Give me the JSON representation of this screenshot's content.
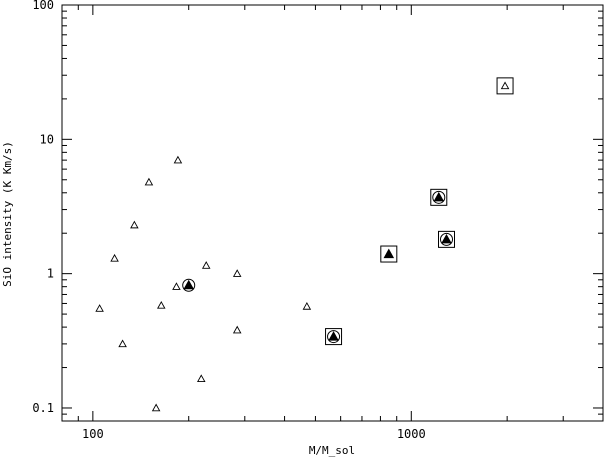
{
  "chart_data": {
    "type": "scatter",
    "xlabel": "M/M_sol",
    "ylabel": "SiO intensity (K Km/s)",
    "xscale": "log",
    "yscale": "log",
    "xlim": [
      80,
      4000
    ],
    "ylim": [
      0.08,
      100
    ],
    "x_ticks": [
      {
        "value": 100,
        "label": "100"
      },
      {
        "value": 1000,
        "label": "1000"
      }
    ],
    "y_ticks": [
      {
        "value": 0.1,
        "label": "0.1"
      },
      {
        "value": 1,
        "label": "1"
      },
      {
        "value": 10,
        "label": "10"
      },
      {
        "value": 100,
        "label": "100"
      }
    ],
    "grid": false,
    "points": [
      {
        "x": 105,
        "y": 0.55,
        "marker": "open-triangle",
        "frame": "none"
      },
      {
        "x": 117,
        "y": 1.3,
        "marker": "open-triangle",
        "frame": "none"
      },
      {
        "x": 124,
        "y": 0.3,
        "marker": "open-triangle",
        "frame": "none"
      },
      {
        "x": 135,
        "y": 2.3,
        "marker": "open-triangle",
        "frame": "none"
      },
      {
        "x": 150,
        "y": 4.8,
        "marker": "open-triangle",
        "frame": "none"
      },
      {
        "x": 158,
        "y": 0.1,
        "marker": "open-triangle",
        "frame": "none"
      },
      {
        "x": 164,
        "y": 0.58,
        "marker": "open-triangle",
        "frame": "none"
      },
      {
        "x": 183,
        "y": 0.8,
        "marker": "open-triangle",
        "frame": "none"
      },
      {
        "x": 185,
        "y": 7.0,
        "marker": "open-triangle",
        "frame": "none"
      },
      {
        "x": 219,
        "y": 0.165,
        "marker": "open-triangle",
        "frame": "none"
      },
      {
        "x": 227,
        "y": 1.15,
        "marker": "open-triangle",
        "frame": "none"
      },
      {
        "x": 284,
        "y": 1.0,
        "marker": "open-triangle",
        "frame": "none"
      },
      {
        "x": 284,
        "y": 0.38,
        "marker": "open-triangle",
        "frame": "none"
      },
      {
        "x": 470,
        "y": 0.57,
        "marker": "open-triangle",
        "frame": "none"
      },
      {
        "x": 200,
        "y": 0.82,
        "marker": "filled-triangle",
        "frame": "circle"
      },
      {
        "x": 570,
        "y": 0.34,
        "marker": "filled-triangle",
        "frame": "square+circle"
      },
      {
        "x": 850,
        "y": 1.4,
        "marker": "filled-triangle",
        "frame": "square"
      },
      {
        "x": 1220,
        "y": 3.7,
        "marker": "filled-triangle",
        "frame": "square+circle"
      },
      {
        "x": 1290,
        "y": 1.8,
        "marker": "filled-triangle",
        "frame": "square+circle"
      },
      {
        "x": 1970,
        "y": 25,
        "marker": "open-triangle",
        "frame": "square"
      }
    ]
  }
}
